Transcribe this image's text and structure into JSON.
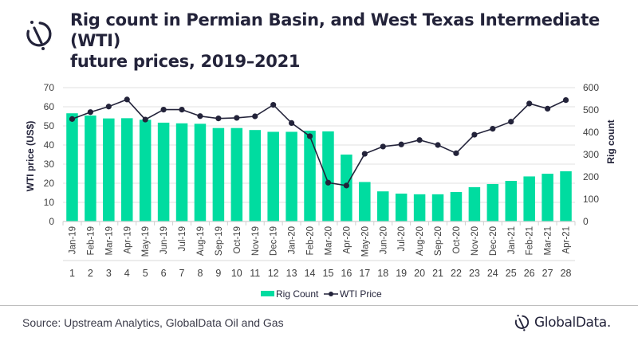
{
  "header": {
    "logo_icon": "globaldata-logo-icon",
    "title_line1": "Rig count in Permian Basin, and West Texas Intermediate (WTI)",
    "title_line2": "future prices, 2019–2021"
  },
  "footer": {
    "source": "Source: Upstream Analytics, GlobalData Oil and Gas",
    "brand_icon": "globaldata-logo-icon",
    "brand_name": "GlobalData."
  },
  "colors": {
    "bar": "#00dca0",
    "line": "#23233a",
    "grid": "#e6e6e6",
    "text": "#23233a"
  },
  "chart_data": {
    "type": "bar+line",
    "title": "Rig count in Permian Basin, and West Texas Intermediate (WTI) future prices, 2019–2021",
    "categories": [
      "Jan-19",
      "Feb-19",
      "Mar-19",
      "Apr-19",
      "May-19",
      "Jun-19",
      "Jul-19",
      "Aug-19",
      "Sep-19",
      "Oct-19",
      "Nov-19",
      "Dec-19",
      "Jan-20",
      "Feb-20",
      "Mar-20",
      "Apr-20",
      "May-20",
      "Jun-20",
      "Jul-20",
      "Aug-20",
      "Sep-20",
      "Oct-20",
      "Nov-20",
      "Dec-20",
      "Jan-21",
      "Feb-21",
      "Mar-21",
      "Apr-21"
    ],
    "category_numbers": [
      "1",
      "2",
      "3",
      "4",
      "5",
      "6",
      "7",
      "8",
      "9",
      "10",
      "11",
      "12",
      "13",
      "14",
      "15",
      "16",
      "17",
      "18",
      "19",
      "20",
      "21",
      "22",
      "23",
      "24",
      "25",
      "26",
      "27",
      "28"
    ],
    "series": [
      {
        "name": "Rig Count",
        "type": "bar",
        "axis": "right",
        "values": [
          485,
          475,
          462,
          463,
          456,
          443,
          440,
          438,
          419,
          419,
          410,
          402,
          402,
          407,
          404,
          300,
          177,
          135,
          125,
          122,
          122,
          132,
          154,
          168,
          182,
          202,
          214,
          225
        ]
      },
      {
        "name": "WTI Price",
        "type": "line",
        "axis": "left",
        "values": [
          53.6,
          57.2,
          60.1,
          63.8,
          53.3,
          58.5,
          58.5,
          55.1,
          53.9,
          54.2,
          55.0,
          61.0,
          51.5,
          44.6,
          20.3,
          18.8,
          35.4,
          39.2,
          40.3,
          42.6,
          40.0,
          35.7,
          45.4,
          48.5,
          52.2,
          61.7,
          59.0,
          63.5
        ]
      }
    ],
    "ylabel": "WTI price (US$)",
    "ylim": [
      0,
      70
    ],
    "yticks": [
      "0",
      "10",
      "20",
      "30",
      "40",
      "50",
      "60",
      "70"
    ],
    "y2label": "Rig count",
    "y2lim": [
      0,
      600
    ],
    "y2ticks": [
      "0",
      "100",
      "200",
      "300",
      "400",
      "500",
      "600"
    ],
    "grid": true,
    "legend": {
      "position": "bottom",
      "entries": [
        "Rig Count",
        "WTI Price"
      ]
    }
  }
}
